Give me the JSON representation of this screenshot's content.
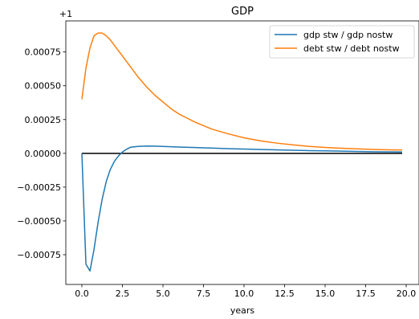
{
  "chart_data": {
    "type": "line",
    "title": "GDP",
    "xlabel": "years",
    "ylabel": "",
    "offset_label": "+1",
    "xlim": [
      -0.99,
      20.79
    ],
    "ylim": [
      -0.00097,
      0.00098
    ],
    "xticks": [
      0.0,
      2.5,
      5.0,
      7.5,
      10.0,
      12.5,
      15.0,
      17.5,
      20.0
    ],
    "xtick_labels": [
      "0.0",
      "2.5",
      "5.0",
      "7.5",
      "10.0",
      "12.5",
      "15.0",
      "17.5",
      "20.0"
    ],
    "yticks": [
      -0.00075,
      -0.0005,
      -0.00025,
      0.0,
      0.00025,
      0.0005,
      0.00075
    ],
    "ytick_labels": [
      "−0.00075",
      "−0.00050",
      "−0.00025",
      "0.00000",
      "0.00025",
      "0.00050",
      "0.00075"
    ],
    "grid": false,
    "legend_position": "top-right",
    "series": [
      {
        "name": "gdp stw / gdp nostw",
        "color": "#1f77b4",
        "x": [
          0.0,
          0.25,
          0.5,
          0.75,
          1.0,
          1.25,
          1.5,
          1.75,
          2.0,
          2.25,
          2.5,
          2.75,
          3.0,
          3.5,
          4.0,
          4.5,
          5.0,
          5.5,
          6.0,
          7.0,
          8.0,
          9.0,
          10.0,
          11.0,
          12.0,
          13.0,
          14.0,
          15.0,
          16.0,
          17.0,
          18.0,
          19.0,
          19.75
        ],
        "y": [
          0.0,
          -0.00082,
          -0.00087,
          -0.00071,
          -0.00051,
          -0.00034,
          -0.00021,
          -0.00012,
          -6e-05,
          -2e-05,
          1e-05,
          3e-05,
          4.5e-05,
          5.2e-05,
          5.4e-05,
          5.3e-05,
          5.1e-05,
          4.9e-05,
          4.7e-05,
          4.3e-05,
          3.9e-05,
          3.5e-05,
          3.2e-05,
          2.9e-05,
          2.6e-05,
          2.3e-05,
          2e-05,
          1.8e-05,
          1.6e-05,
          1.4e-05,
          1.2e-05,
          1.1e-05,
          1e-05
        ]
      },
      {
        "name": "debt stw / debt nostw",
        "color": "#ff7f0e",
        "x": [
          0.0,
          0.25,
          0.5,
          0.75,
          1.0,
          1.25,
          1.5,
          1.75,
          2.0,
          2.5,
          3.0,
          3.5,
          4.0,
          4.5,
          5.0,
          5.5,
          6.0,
          6.5,
          7.0,
          7.5,
          8.0,
          9.0,
          10.0,
          11.0,
          12.0,
          13.0,
          14.0,
          15.0,
          16.0,
          17.0,
          18.0,
          19.0,
          19.75
        ],
        "y": [
          0.0004,
          0.00063,
          0.00078,
          0.00087,
          0.00089,
          0.00089,
          0.00087,
          0.00084,
          0.0008,
          0.00072,
          0.00064,
          0.00056,
          0.00049,
          0.00043,
          0.00038,
          0.00033,
          0.00029,
          0.00026,
          0.00023,
          0.000205,
          0.00018,
          0.000145,
          0.000115,
          9.3e-05,
          7.6e-05,
          6.3e-05,
          5.2e-05,
          4.4e-05,
          3.8e-05,
          3.3e-05,
          2.9e-05,
          2.6e-05,
          2.5e-05
        ]
      },
      {
        "name": "",
        "color": "#000000",
        "x": [
          0.0,
          19.75
        ],
        "y": [
          0.0,
          0.0
        ]
      }
    ]
  }
}
